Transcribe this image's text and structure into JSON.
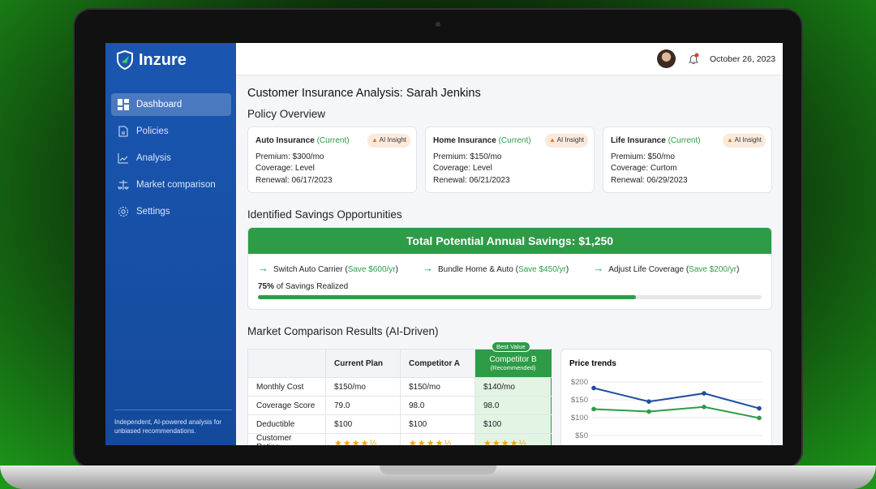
{
  "brand": "Inzure",
  "sidebar": {
    "items": [
      {
        "label": "Dashboard",
        "icon": "dashboard-icon"
      },
      {
        "label": "Policies",
        "icon": "document-icon"
      },
      {
        "label": "Analysis",
        "icon": "chart-icon"
      },
      {
        "label": "Market comparison",
        "icon": "scale-icon"
      },
      {
        "label": "Settings",
        "icon": "gear-icon"
      }
    ],
    "footer": "Independent, AI-powered analysis for unbiased recommendations."
  },
  "header": {
    "date": "October 26, 2023"
  },
  "title": "Customer Insurance Analysis: Sarah Jenkins",
  "policy_overview": {
    "heading": "Policy Overview",
    "badge": "AI Insight",
    "cards": [
      {
        "name": "Auto Insurance",
        "status": "(Current)",
        "premium": "Premium: $300/mo",
        "coverage": "Coverage: Level",
        "renewal": "Renewal: 06/17/2023"
      },
      {
        "name": "Home Insurance",
        "status": "(Current)",
        "premium": "Premium: $150/mo",
        "coverage": "Coverage: Level",
        "renewal": "Renewal: 06/21/2023"
      },
      {
        "name": "Life Insurance",
        "status": "(Current)",
        "premium": "Premium: $50/mo",
        "coverage": "Coverage: Curtom",
        "renewal": "Renewal: 06/29/2023"
      }
    ]
  },
  "savings": {
    "heading": "Identified Savings Opportunities",
    "total": "Total Potential Annual Savings: $1,250",
    "items": [
      {
        "label": "Switch Auto Carrier",
        "save": "Save $600/yr"
      },
      {
        "label": "Bundle Home & Auto",
        "save": "Save $450/yr"
      },
      {
        "label": "Adjust Life Coverage",
        "save": "Save $200/yr"
      }
    ],
    "progress_pct": "75%",
    "progress_label": "of Savings Realized",
    "progress": 75,
    "accent": "#2e9b47"
  },
  "market": {
    "heading": "Market Comparison Results (AI-Driven)",
    "columns": [
      "",
      "Current Plan",
      "Competitor A",
      "Competitor B",
      "(Recommended)"
    ],
    "best_value": "Best Value",
    "rows": [
      [
        "Monthly Cost",
        "$150/mo",
        "$150/mo",
        "$140/mo"
      ],
      [
        "Coverage Score",
        "79.0",
        "98.0",
        "98.0"
      ],
      [
        "Deductible",
        "$100",
        "$100",
        "$100"
      ],
      [
        "Customer Rating",
        "★★★★½",
        "★★★★½",
        "★★★★½"
      ]
    ]
  },
  "chart_data": {
    "type": "line",
    "title": "Price trends",
    "yticks": [
      "$200",
      "$150",
      "$100",
      "$50"
    ],
    "ylim": [
      50,
      200
    ],
    "x": [
      1,
      2,
      3,
      4
    ],
    "series": [
      {
        "color": "#1f4e9c",
        "values": [
          183,
          145,
          168,
          126
        ]
      },
      {
        "color": "#2e9b47",
        "values": [
          124,
          117,
          130,
          99
        ]
      }
    ]
  }
}
